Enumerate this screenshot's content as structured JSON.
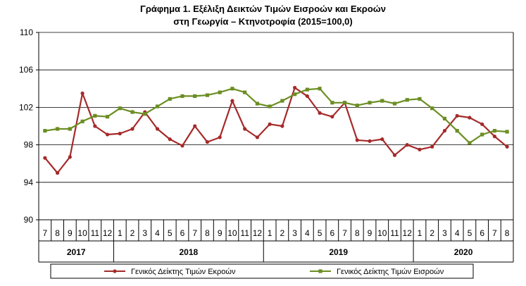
{
  "chart_data": {
    "type": "line",
    "title_line1": "Γράφημα 1. Εξέλιξη Δεικτών Τιμών Εισροών και Εκροών",
    "title_line2": "στη Γεωργία – Κτηνοτροφία (2015=100,0)",
    "ylim": [
      90,
      110
    ],
    "yticks": [
      "90",
      "94",
      "98",
      "102",
      "106",
      "110"
    ],
    "grid": true,
    "legend_position": "bottom",
    "months": [
      "7",
      "8",
      "9",
      "10",
      "11",
      "12",
      "1",
      "2",
      "3",
      "4",
      "5",
      "6",
      "7",
      "8",
      "9",
      "10",
      "11",
      "12",
      "1",
      "2",
      "3",
      "4",
      "5",
      "6",
      "7",
      "8",
      "9",
      "10",
      "11",
      "12",
      "1",
      "2",
      "3",
      "4",
      "5",
      "6",
      "7",
      "8"
    ],
    "years": [
      {
        "label": "2017",
        "start": 0,
        "count": 6
      },
      {
        "label": "2018",
        "start": 6,
        "count": 12
      },
      {
        "label": "2019",
        "start": 18,
        "count": 12
      },
      {
        "label": "2020",
        "start": 30,
        "count": 8
      }
    ],
    "series": [
      {
        "name": "Γενικός Δείκτης Τιμών Εκροών",
        "color": "#a52a2a",
        "values": [
          96.6,
          95.0,
          96.7,
          103.5,
          100.0,
          99.1,
          99.2,
          99.7,
          101.5,
          99.7,
          98.6,
          97.9,
          100.0,
          98.3,
          98.8,
          102.7,
          99.7,
          98.8,
          100.2,
          100.0,
          104.1,
          103.2,
          101.4,
          101.0,
          102.5,
          98.5,
          98.4,
          98.6,
          96.9,
          98.0,
          97.5,
          97.8,
          99.5,
          101.1,
          100.9,
          100.2,
          98.9,
          97.8
        ]
      },
      {
        "name": "Γενικός Δείκτης Τιμών Εισροών",
        "color": "#6b8e23",
        "values": [
          99.5,
          99.7,
          99.7,
          100.5,
          101.1,
          101.0,
          101.9,
          101.5,
          101.3,
          102.1,
          102.9,
          103.2,
          103.2,
          103.3,
          103.6,
          104.0,
          103.6,
          102.4,
          102.1,
          102.7,
          103.4,
          103.9,
          104.0,
          102.5,
          102.5,
          102.2,
          102.5,
          102.7,
          102.4,
          102.8,
          102.9,
          101.9,
          100.8,
          99.5,
          98.2,
          99.1,
          99.5,
          99.4
        ]
      }
    ]
  }
}
